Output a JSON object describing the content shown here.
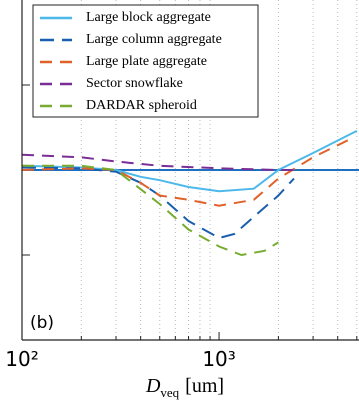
{
  "chart_data": {
    "type": "line",
    "xlabel": {
      "symbol": "D",
      "subscript": "veq",
      "unit": "[um]"
    },
    "annotation": "(b)",
    "xscale": "log",
    "xlim": [
      100,
      5130
    ],
    "xticks": [
      {
        "value": 100,
        "label": "10²"
      },
      {
        "value": 1000,
        "label": "10³"
      }
    ],
    "xminorticks": [
      200,
      300,
      400,
      500,
      600,
      700,
      800,
      900,
      2000,
      3000,
      4000,
      5000
    ],
    "ylim": [
      -2,
      2
    ],
    "yticks": [
      -1,
      0,
      1
    ],
    "reference_line": {
      "value": 0,
      "color": "#1f6fc0"
    },
    "legend": "upper left",
    "series": [
      {
        "name": "Large block aggregate",
        "color": "#4db8ea",
        "dash": "none",
        "x": [
          100,
          200,
          300,
          400,
          500,
          700,
          1000,
          1500,
          2000,
          3000,
          5000
        ],
        "values": [
          0.05,
          0.03,
          0.0,
          -0.08,
          -0.12,
          -0.2,
          -0.25,
          -0.22,
          0.0,
          0.2,
          0.46
        ]
      },
      {
        "name": "Large column aggregate",
        "color": "#1a5fae",
        "dash": "14 8",
        "x": [
          100,
          200,
          300,
          400,
          500,
          700,
          1000,
          1200,
          1500,
          2000,
          2400
        ],
        "values": [
          0.03,
          0.02,
          -0.02,
          -0.15,
          -0.3,
          -0.6,
          -0.8,
          -0.75,
          -0.55,
          -0.3,
          -0.1
        ]
      },
      {
        "name": "Large plate aggregate",
        "color": "#e0622a",
        "dash": "12 8",
        "x": [
          100,
          200,
          300,
          400,
          500,
          700,
          1000,
          1500,
          2000,
          3000,
          4500
        ],
        "values": [
          0.0,
          0.02,
          0.0,
          -0.15,
          -0.3,
          -0.35,
          -0.42,
          -0.35,
          -0.1,
          0.15,
          0.35
        ]
      },
      {
        "name": "Sector snowflake",
        "color": "#7b2d96",
        "dash": "12 8",
        "x": [
          100,
          200,
          300,
          500,
          1000,
          2000,
          2500
        ],
        "values": [
          0.18,
          0.15,
          0.1,
          0.05,
          0.02,
          0.0,
          0.0
        ]
      },
      {
        "name": "DARDAR spheroid",
        "color": "#77ac30",
        "dash": "12 8",
        "x": [
          100,
          200,
          300,
          500,
          700,
          1000,
          1300,
          1700,
          2000
        ],
        "values": [
          0.05,
          0.05,
          0.0,
          -0.4,
          -0.7,
          -0.9,
          -1.0,
          -0.95,
          -0.85
        ]
      }
    ]
  }
}
